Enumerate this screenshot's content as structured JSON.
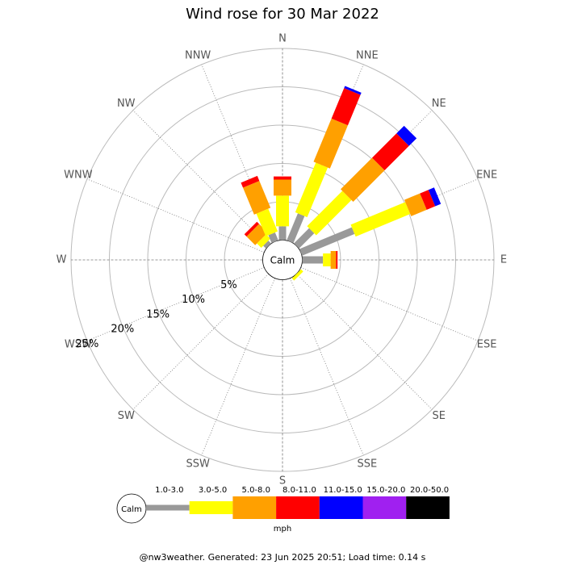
{
  "chart_data": {
    "type": "windrose",
    "title": "Wind rose for 30 Mar 2022",
    "calm_label": "Calm",
    "categories": [
      "N",
      "NNE",
      "NE",
      "ENE",
      "E",
      "ESE",
      "SE",
      "SSE",
      "S",
      "SSW",
      "SW",
      "WSW",
      "W",
      "WNW",
      "NW",
      "NNW"
    ],
    "series": [
      {
        "name": "1.0-3.0",
        "color": "#999999",
        "values": [
          1.8,
          3.8,
          2.8,
          7.4,
          2.7,
          0,
          0,
          0,
          0,
          0,
          0,
          0,
          0,
          0,
          0.5,
          1.1
        ]
      },
      {
        "name": "3.0-5.0",
        "color": "#ffff00",
        "values": [
          4.0,
          7.0,
          6.5,
          7.7,
          1.0,
          0,
          0.4,
          0,
          0,
          0,
          0,
          0,
          0,
          0,
          0.8,
          3.2
        ]
      },
      {
        "name": "5.0-8.0",
        "color": "#ffa000",
        "values": [
          2.1,
          6.1,
          5.8,
          2.2,
          0.7,
          0,
          0,
          0,
          0,
          0,
          0,
          0,
          0,
          0,
          1.6,
          3.8
        ]
      },
      {
        "name": "8.0-11.0",
        "color": "#ff0000",
        "values": [
          0.4,
          4.3,
          4.5,
          1.2,
          0.2,
          0,
          0,
          0,
          0,
          0,
          0,
          0,
          0,
          0,
          0.4,
          0.7
        ]
      },
      {
        "name": "11.0-15.0",
        "color": "#0000ff",
        "values": [
          0,
          0.3,
          1.4,
          0.8,
          0,
          0,
          0,
          0,
          0,
          0,
          0,
          0,
          0,
          0,
          0,
          0
        ]
      },
      {
        "name": "15.0-20.0",
        "color": "#a020f0",
        "values": [
          0,
          0,
          0,
          0,
          0,
          0,
          0,
          0,
          0,
          0,
          0,
          0,
          0,
          0,
          0,
          0
        ]
      },
      {
        "name": "20.0-50.0",
        "color": "#000000",
        "values": [
          0,
          0,
          0,
          0,
          0,
          0,
          0,
          0,
          0,
          0,
          0,
          0,
          0,
          0,
          0,
          0
        ]
      }
    ],
    "rlim": [
      0,
      25
    ],
    "rticks": [
      {
        "value": 5,
        "label": "5%"
      },
      {
        "value": 10,
        "label": "10%"
      },
      {
        "value": 15,
        "label": "15%"
      },
      {
        "value": 20,
        "label": "20%"
      },
      {
        "value": 25,
        "label": "25%"
      }
    ],
    "unit_label": "mph",
    "footer": "@nw3weather.  Generated: 23 Jun 2025 20:51; Load time: 0.14 s"
  }
}
